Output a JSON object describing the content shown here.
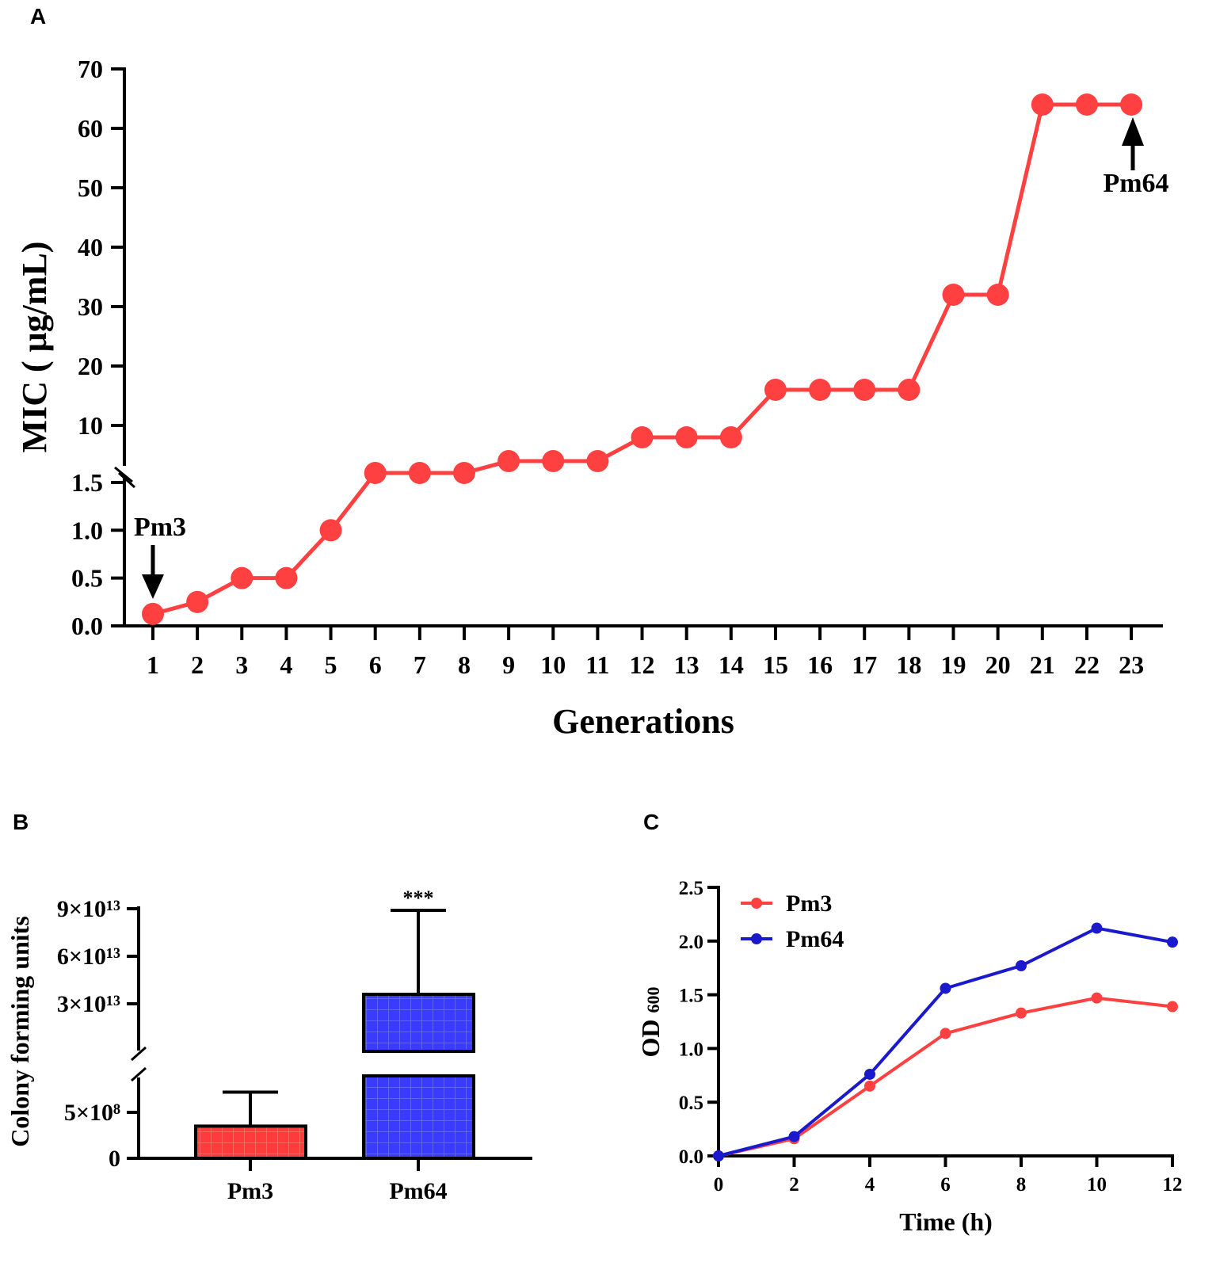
{
  "panels": {
    "a": "A",
    "b": "B",
    "c": "C"
  },
  "chart_data": [
    {
      "type": "line",
      "panel": "A",
      "xlabel": "Generations",
      "ylabel": "MIC ( μg/mL)",
      "x": [
        1,
        2,
        3,
        4,
        5,
        6,
        7,
        8,
        9,
        10,
        11,
        12,
        13,
        14,
        15,
        16,
        17,
        18,
        19,
        20,
        21,
        22,
        23
      ],
      "series": [
        {
          "values": [
            0.125,
            0.25,
            0.5,
            0.5,
            1,
            2,
            2,
            2,
            4,
            4,
            4,
            8,
            8,
            8,
            16,
            16,
            16,
            16,
            32,
            32,
            64,
            64,
            64
          ],
          "color": "#ff4040"
        }
      ],
      "y_axis_break": {
        "lower": [
          0,
          1.5
        ],
        "upper": [
          10,
          70
        ]
      },
      "yticks_lower": [
        "0.0",
        "0.5",
        "1.0",
        "1.5"
      ],
      "yticks_upper": [
        "10",
        "20",
        "30",
        "40",
        "50",
        "60",
        "70"
      ],
      "xticks": [
        "1",
        "2",
        "3",
        "4",
        "5",
        "6",
        "7",
        "8",
        "9",
        "10",
        "11",
        "12",
        "13",
        "14",
        "15",
        "16",
        "17",
        "18",
        "19",
        "20",
        "21",
        "22",
        "23"
      ],
      "annotations": [
        {
          "text": "Pm3",
          "x": 1,
          "arrow": "down"
        },
        {
          "text": "Pm64",
          "x": 23,
          "arrow": "up"
        }
      ],
      "grid": false
    },
    {
      "type": "bar",
      "panel": "B",
      "ylabel": "Colony forming units",
      "categories": [
        "Pm3",
        "Pm64"
      ],
      "values": [
        350000000.0,
        36000000000000.0
      ],
      "error_upper": [
        720000000.0,
        89000000000000.0
      ],
      "colors": [
        "#ff3b3b",
        "#3b3bff"
      ],
      "y_axis_break": {
        "lower": [
          0,
          900000000.0
        ],
        "upper": [
          0,
          90000000000000.0
        ]
      },
      "yticks": [
        {
          "value": 0,
          "label": "0"
        },
        {
          "value": 500000000.0,
          "label": "5×10⁸"
        },
        {
          "value": 30000000000000.0,
          "label": "3×10¹³"
        },
        {
          "value": 60000000000000.0,
          "label": "6×10¹³"
        },
        {
          "value": 90000000000000.0,
          "label": "9×10¹³"
        }
      ],
      "significance": "***",
      "grid": false
    },
    {
      "type": "line",
      "panel": "C",
      "xlabel": "Time (h)",
      "ylabel": "OD",
      "ylabel_sub": "600",
      "x": [
        0,
        2,
        4,
        6,
        8,
        10,
        12
      ],
      "xlim": [
        0,
        12
      ],
      "ylim": [
        0,
        2.5
      ],
      "xticks": [
        "0",
        "2",
        "4",
        "6",
        "8",
        "10",
        "12"
      ],
      "yticks": [
        "0.0",
        "0.5",
        "1.0",
        "1.5",
        "2.0",
        "2.5"
      ],
      "series": [
        {
          "name": "Pm3",
          "values": [
            0,
            0.16,
            0.65,
            1.14,
            1.33,
            1.47,
            1.39
          ],
          "color": "#ff4040"
        },
        {
          "name": "Pm64",
          "values": [
            0,
            0.18,
            0.76,
            1.56,
            1.77,
            2.12,
            1.99
          ],
          "color": "#1a1acc"
        }
      ],
      "legend": "top-left",
      "grid": false
    }
  ]
}
